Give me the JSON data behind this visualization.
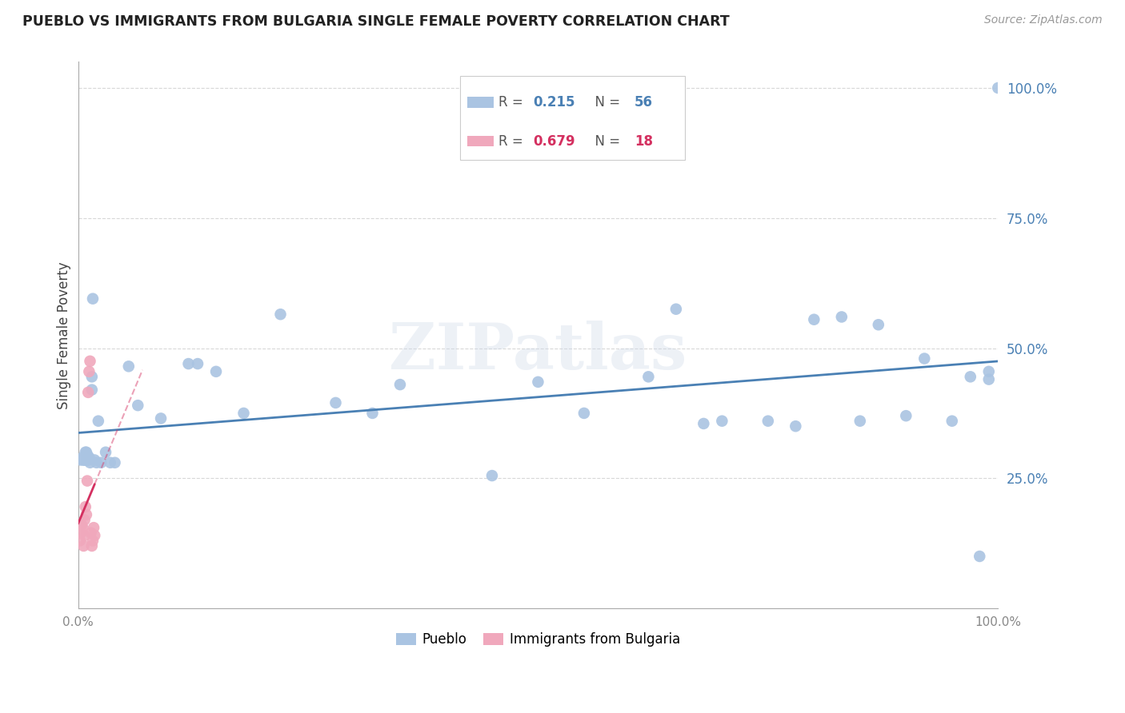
{
  "title": "PUEBLO VS IMMIGRANTS FROM BULGARIA SINGLE FEMALE POVERTY CORRELATION CHART",
  "source": "Source: ZipAtlas.com",
  "ylabel": "Single Female Poverty",
  "xlim": [
    0,
    1
  ],
  "ylim": [
    0,
    1.05
  ],
  "ytick_labels": [
    "25.0%",
    "50.0%",
    "75.0%",
    "100.0%"
  ],
  "ytick_positions": [
    0.25,
    0.5,
    0.75,
    1.0
  ],
  "legend_labels": [
    "Pueblo",
    "Immigrants from Bulgaria"
  ],
  "r_pueblo": "0.215",
  "n_pueblo": "56",
  "r_bulgaria": "0.679",
  "n_bulgaria": "18",
  "pueblo_color": "#aac4e2",
  "pueblo_line_color": "#4a80b4",
  "bulgaria_color": "#f0a8bc",
  "bulgaria_line_color": "#d43060",
  "watermark": "ZIPatlas",
  "background_color": "#ffffff",
  "grid_color": "#d8d8d8",
  "pueblo_x": [
    0.003,
    0.005,
    0.006,
    0.007,
    0.008,
    0.008,
    0.009,
    0.009,
    0.01,
    0.01,
    0.01,
    0.011,
    0.012,
    0.013,
    0.015,
    0.015,
    0.016,
    0.018,
    0.02,
    0.022,
    0.025,
    0.03,
    0.035,
    0.04,
    0.055,
    0.065,
    0.09,
    0.12,
    0.13,
    0.15,
    0.18,
    0.22,
    0.28,
    0.32,
    0.35,
    0.45,
    0.5,
    0.55,
    0.62,
    0.65,
    0.68,
    0.7,
    0.75,
    0.78,
    0.8,
    0.83,
    0.85,
    0.87,
    0.9,
    0.92,
    0.95,
    0.97,
    0.98,
    0.99,
    0.99,
    1.0
  ],
  "pueblo_y": [
    0.285,
    0.29,
    0.285,
    0.285,
    0.29,
    0.3,
    0.285,
    0.3,
    0.285,
    0.29,
    0.295,
    0.285,
    0.29,
    0.28,
    0.42,
    0.445,
    0.595,
    0.285,
    0.28,
    0.36,
    0.28,
    0.3,
    0.28,
    0.28,
    0.465,
    0.39,
    0.365,
    0.47,
    0.47,
    0.455,
    0.375,
    0.565,
    0.395,
    0.375,
    0.43,
    0.255,
    0.435,
    0.375,
    0.445,
    0.575,
    0.355,
    0.36,
    0.36,
    0.35,
    0.555,
    0.56,
    0.36,
    0.545,
    0.37,
    0.48,
    0.36,
    0.445,
    0.1,
    0.455,
    0.44,
    1.0
  ],
  "bulgaria_x": [
    0.002,
    0.003,
    0.004,
    0.005,
    0.006,
    0.007,
    0.007,
    0.008,
    0.009,
    0.01,
    0.011,
    0.012,
    0.013,
    0.014,
    0.015,
    0.016,
    0.017,
    0.018
  ],
  "bulgaria_y": [
    0.13,
    0.145,
    0.16,
    0.155,
    0.12,
    0.14,
    0.17,
    0.195,
    0.18,
    0.245,
    0.415,
    0.455,
    0.475,
    0.145,
    0.12,
    0.13,
    0.155,
    0.14
  ]
}
